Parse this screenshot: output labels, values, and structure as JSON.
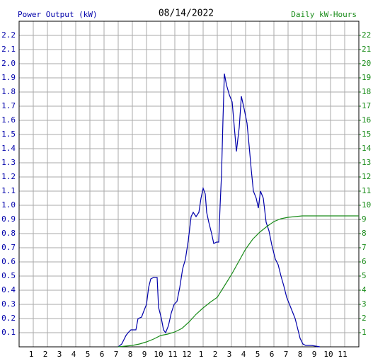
{
  "chart_data": {
    "type": "line",
    "title": "08/14/2022",
    "y_label": "Power Output (kW)",
    "y2_label": "Daily kW-Hours",
    "xlim": [
      0,
      24
    ],
    "xticks": [
      1,
      2,
      3,
      4,
      5,
      6,
      7,
      8,
      9,
      10,
      11,
      12,
      {
        "value": 13,
        "label": "1"
      },
      {
        "value": 14,
        "label": "2"
      },
      {
        "value": 15,
        "label": "3"
      },
      {
        "value": 16,
        "label": "4"
      },
      {
        "value": 17,
        "label": "5"
      },
      {
        "value": 18,
        "label": "6"
      },
      {
        "value": 19,
        "label": "7"
      },
      {
        "value": 20,
        "label": "8"
      },
      {
        "value": 21,
        "label": "9"
      },
      {
        "value": 22,
        "label": "10"
      },
      {
        "value": 23,
        "label": "11"
      }
    ],
    "ylim": [
      0,
      2.3
    ],
    "yticks": [
      0.1,
      0.2,
      0.3,
      0.4,
      0.5,
      0.6,
      0.7,
      0.8,
      0.9,
      {
        "value": 1.0,
        "label": "1.0"
      },
      1.1,
      1.2,
      1.3,
      1.4,
      1.5,
      1.6,
      1.7,
      1.8,
      1.9,
      {
        "value": 2.0,
        "label": "2.0"
      },
      2.1,
      2.2
    ],
    "y2lim": [
      0,
      23
    ],
    "y2ticks": [
      1,
      2,
      3,
      4,
      5,
      6,
      7,
      8,
      9,
      10,
      11,
      12,
      13,
      14,
      15,
      16,
      17,
      18,
      19,
      20,
      21,
      22
    ],
    "grid": true,
    "series": [
      {
        "name": "Power Output (kW)",
        "color": "#0000aa",
        "axis": "y",
        "x": [
          7.0,
          7.25,
          7.4,
          7.55,
          7.7,
          7.9,
          8.25,
          8.4,
          8.65,
          8.8,
          9.0,
          9.15,
          9.3,
          9.5,
          9.75,
          9.85,
          10.05,
          10.2,
          10.35,
          10.55,
          10.75,
          10.95,
          11.15,
          11.35,
          11.55,
          11.75,
          11.95,
          12.15,
          12.3,
          12.5,
          12.7,
          12.85,
          13.0,
          13.15,
          13.25,
          13.4,
          13.6,
          13.75,
          13.95,
          14.1,
          14.2,
          14.3,
          14.4,
          14.5,
          14.65,
          14.85,
          15.05,
          15.35,
          15.55,
          15.7,
          15.9,
          16.1,
          16.25,
          16.4,
          16.55,
          16.75,
          16.9,
          17.05,
          17.25,
          17.45,
          17.65,
          17.85,
          18.1,
          18.3,
          18.5,
          18.7,
          18.9,
          19.1,
          19.3,
          19.5,
          19.7,
          19.85,
          20.05,
          20.25,
          20.65,
          21.25
        ],
        "values": [
          0,
          0.02,
          0.05,
          0.08,
          0.1,
          0.12,
          0.12,
          0.2,
          0.21,
          0.25,
          0.3,
          0.42,
          0.48,
          0.49,
          0.49,
          0.28,
          0.2,
          0.12,
          0.1,
          0.15,
          0.24,
          0.3,
          0.32,
          0.42,
          0.55,
          0.62,
          0.75,
          0.92,
          0.95,
          0.92,
          0.95,
          1.05,
          1.12,
          1.08,
          0.95,
          0.88,
          0.8,
          0.73,
          0.74,
          0.74,
          1.0,
          1.22,
          1.6,
          1.93,
          1.85,
          1.78,
          1.73,
          1.38,
          1.55,
          1.77,
          1.68,
          1.58,
          1.42,
          1.25,
          1.1,
          1.05,
          0.98,
          1.1,
          1.05,
          0.88,
          0.82,
          0.72,
          0.62,
          0.58,
          0.5,
          0.43,
          0.35,
          0.3,
          0.25,
          0.2,
          0.12,
          0.06,
          0.02,
          0.01,
          0.01,
          0
        ]
      },
      {
        "name": "Daily kW-Hours",
        "color": "#1a8c1a",
        "axis": "y2",
        "x": [
          7,
          8,
          8.5,
          9,
          9.5,
          10,
          10.5,
          11,
          11.5,
          12,
          12.5,
          13,
          13.5,
          14,
          14.5,
          15,
          15.5,
          16,
          16.5,
          17,
          17.5,
          18,
          18.5,
          19,
          19.5,
          20,
          24
        ],
        "values": [
          0,
          0.1,
          0.2,
          0.35,
          0.55,
          0.8,
          0.9,
          1.05,
          1.3,
          1.75,
          2.3,
          2.75,
          3.15,
          3.5,
          4.3,
          5.1,
          6.0,
          6.9,
          7.6,
          8.1,
          8.5,
          8.85,
          9.05,
          9.15,
          9.2,
          9.25,
          9.25
        ]
      }
    ]
  }
}
